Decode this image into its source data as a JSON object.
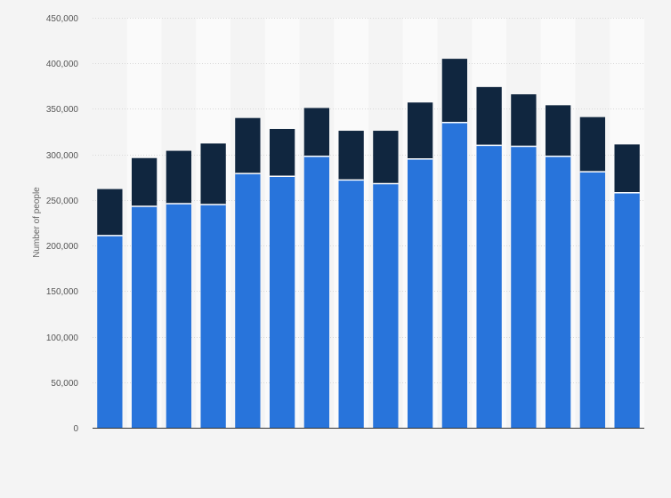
{
  "chart_data": {
    "type": "bar",
    "stacked": true,
    "ylabel": "Number of people",
    "xlabel": "",
    "ylim": [
      0,
      450000
    ],
    "yticks": [
      0,
      50000,
      100000,
      150000,
      200000,
      250000,
      300000,
      350000,
      400000,
      450000
    ],
    "ytick_labels": [
      "0",
      "50,000",
      "100,000",
      "150,000",
      "200,000",
      "250,000",
      "300,000",
      "350,000",
      "400,000",
      "450,000"
    ],
    "grid": true,
    "legend": "none",
    "series": [
      {
        "color": "#2874db",
        "values": [
          211000,
          243000,
          246000,
          245000,
          279000,
          276000,
          298000,
          272000,
          268000,
          295000,
          335000,
          310000,
          309000,
          298000,
          281000,
          258000
        ]
      },
      {
        "color": "#10263f",
        "values": [
          51000,
          53000,
          58000,
          67000,
          61000,
          52000,
          53000,
          54000,
          58000,
          62000,
          70000,
          64000,
          57000,
          56000,
          60000,
          53000
        ]
      }
    ]
  }
}
